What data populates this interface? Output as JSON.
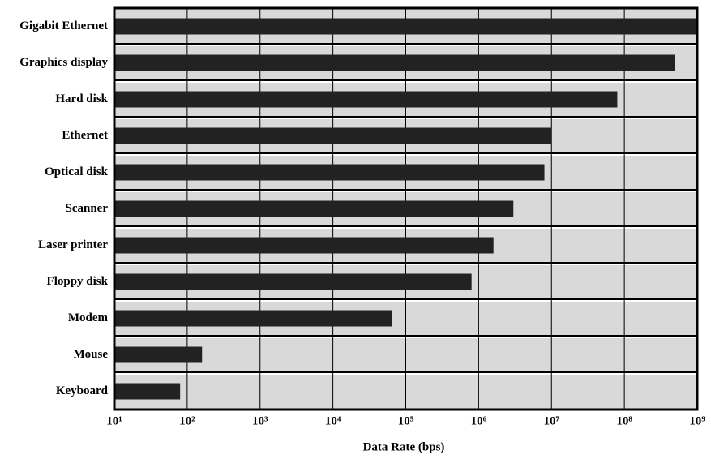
{
  "chart_data": {
    "type": "barh",
    "categories": [
      "Gigabit Ethernet",
      "Graphics display",
      "Hard disk",
      "Ethernet",
      "Optical disk",
      "Scanner",
      "Laser printer",
      "Floppy disk",
      "Modem",
      "Mouse",
      "Keyboard"
    ],
    "values": [
      1000000000,
      500000000,
      80000000,
      10000000,
      8000000,
      3000000,
      1600000,
      800000,
      64000,
      160,
      80
    ],
    "color": "#222222",
    "xlabel": "Data Rate (bps)",
    "xscale": "log",
    "xlim": [
      10,
      1000000000
    ],
    "xticks": [
      {
        "value": 10,
        "label": "10¹"
      },
      {
        "value": 100,
        "label": "10²"
      },
      {
        "value": 1000,
        "label": "10³"
      },
      {
        "value": 10000,
        "label": "10⁴"
      },
      {
        "value": 100000,
        "label": "10⁵"
      },
      {
        "value": 1000000,
        "label": "10⁶"
      },
      {
        "value": 10000000,
        "label": "10⁷"
      },
      {
        "value": 100000000,
        "label": "10⁸"
      },
      {
        "value": 1000000000,
        "label": "10⁹"
      }
    ],
    "grid": true
  }
}
